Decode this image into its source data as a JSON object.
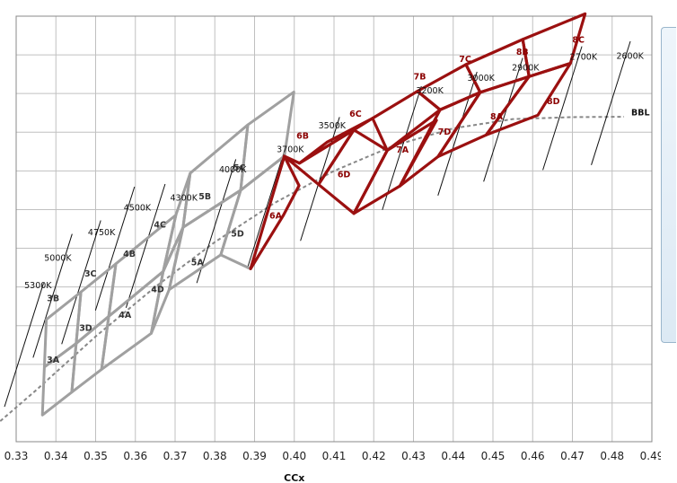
{
  "chart_data": {
    "type": "line",
    "title": "",
    "xlabel": "CCx",
    "ylabel": "",
    "xlim": [
      0.33,
      0.49
    ],
    "ylim": [
      0.33,
      0.44
    ],
    "x_ticks": [
      "0.33",
      "0.34",
      "0.35",
      "0.36",
      "0.37",
      "0.38",
      "0.39",
      "0.40",
      "0.41",
      "0.42",
      "0.43",
      "0.44",
      "0.45",
      "0.46",
      "0.47",
      "0.48",
      "0.49"
    ],
    "grid": true,
    "colors": {
      "gray": "#a0a0a0",
      "red": "#9b1010",
      "grid": "#c0c0c0",
      "bbl": "#888888"
    },
    "cct_labels": [
      {
        "text": "5300K",
        "x": 0.3375,
        "y": 0.3704,
        "lx": 0.3355,
        "ly": 0.3697
      },
      {
        "text": "5000K",
        "x": 0.3447,
        "y": 0.3831,
        "lx": 0.3405,
        "ly": 0.3768
      },
      {
        "text": "4750K",
        "x": 0.3519,
        "y": 0.3866,
        "lx": 0.3515,
        "ly": 0.3834
      },
      {
        "text": "4500K",
        "x": 0.3604,
        "y": 0.3953,
        "lx": 0.3605,
        "ly": 0.3898
      },
      {
        "text": "4300K",
        "x": 0.3681,
        "y": 0.396,
        "lx": 0.3722,
        "ly": 0.3923
      },
      {
        "text": "4000K",
        "x": 0.3859,
        "y": 0.4024,
        "lx": 0.3845,
        "ly": 0.3996
      },
      {
        "text": "3700K",
        "x": 0.3986,
        "y": 0.4061,
        "lx": 0.399,
        "ly": 0.4048
      },
      {
        "text": "3500K",
        "x": 0.412,
        "y": 0.4133,
        "lx": 0.4095,
        "ly": 0.411
      },
      {
        "text": "3200K",
        "x": 0.4326,
        "y": 0.4213,
        "lx": 0.4341,
        "ly": 0.42
      },
      {
        "text": "3000K",
        "x": 0.4466,
        "y": 0.425,
        "lx": 0.447,
        "ly": 0.4233
      },
      {
        "text": "2900K",
        "x": 0.4581,
        "y": 0.4286,
        "lx": 0.4582,
        "ly": 0.426
      },
      {
        "text": "2700K",
        "x": 0.473,
        "y": 0.4316,
        "lx": 0.4728,
        "ly": 0.4287
      },
      {
        "text": "2600K",
        "x": 0.4852,
        "y": 0.4329,
        "lx": 0.4845,
        "ly": 0.429
      }
    ],
    "bbl": {
      "label": "BBL",
      "label_x": 0.4848,
      "label_y": 0.4144,
      "x": [
        0.32,
        0.335,
        0.35,
        0.365,
        0.38,
        0.395,
        0.41,
        0.425,
        0.44,
        0.455,
        0.47,
        0.483
      ],
      "y": [
        0.33,
        0.3433,
        0.3572,
        0.37,
        0.3816,
        0.3917,
        0.4,
        0.4065,
        0.411,
        0.4134,
        0.4139,
        0.414
      ]
    },
    "series": [
      {
        "group": "gray",
        "bins": [
          {
            "name": "3A",
            "label_x": 0.3393,
            "label_y": 0.3504,
            "points": [
              [
                0.3371,
                0.3493
              ],
              [
                0.3451,
                0.3554
              ],
              [
                0.344,
                0.3428
              ],
              [
                0.3366,
                0.3369
              ]
            ]
          },
          {
            "name": "3B",
            "label_x": 0.3393,
            "label_y": 0.3663,
            "points": [
              [
                0.3376,
                0.3616
              ],
              [
                0.3463,
                0.3687
              ],
              [
                0.3451,
                0.3554
              ],
              [
                0.3371,
                0.3493
              ]
            ]
          },
          {
            "name": "3C",
            "label_x": 0.3487,
            "label_y": 0.3727,
            "points": [
              [
                0.3463,
                0.3687
              ],
              [
                0.3551,
                0.376
              ],
              [
                0.3533,
                0.3624
              ],
              [
                0.3451,
                0.3554
              ]
            ]
          },
          {
            "name": "3D",
            "label_x": 0.3475,
            "label_y": 0.3587,
            "points": [
              [
                0.3451,
                0.3554
              ],
              [
                0.3533,
                0.3624
              ],
              [
                0.3515,
                0.3487
              ],
              [
                0.344,
                0.3428
              ]
            ]
          },
          {
            "name": "4A",
            "label_x": 0.3574,
            "label_y": 0.362,
            "points": [
              [
                0.3533,
                0.3624
              ],
              [
                0.367,
                0.374
              ],
              [
                0.364,
                0.358
              ],
              [
                0.3515,
                0.3487
              ]
            ]
          },
          {
            "name": "4B",
            "label_x": 0.3585,
            "label_y": 0.3778,
            "points": [
              [
                0.3551,
                0.376
              ],
              [
                0.3702,
                0.3886
              ],
              [
                0.367,
                0.374
              ],
              [
                0.3533,
                0.3624
              ]
            ]
          },
          {
            "name": "4C",
            "label_x": 0.3662,
            "label_y": 0.3854,
            "points": [
              [
                0.3702,
                0.3886
              ],
              [
                0.3738,
                0.3994
              ],
              [
                0.372,
                0.3854
              ],
              [
                0.367,
                0.374
              ]
            ]
          },
          {
            "name": "4D",
            "label_x": 0.3656,
            "label_y": 0.3686,
            "points": [
              [
                0.367,
                0.374
              ],
              [
                0.372,
                0.3854
              ],
              [
                0.3685,
                0.3693
              ],
              [
                0.364,
                0.358
              ]
            ]
          },
          {
            "name": "5A",
            "label_x": 0.3756,
            "label_y": 0.3756,
            "points": [
              [
                0.372,
                0.3854
              ],
              [
                0.3865,
                0.395
              ],
              [
                0.3815,
                0.3783
              ],
              [
                0.3685,
                0.3693
              ]
            ]
          },
          {
            "name": "5B",
            "label_x": 0.3775,
            "label_y": 0.3927,
            "points": [
              [
                0.3738,
                0.3994
              ],
              [
                0.3883,
                0.4119
              ],
              [
                0.3865,
                0.395
              ],
              [
                0.372,
                0.3854
              ]
            ]
          },
          {
            "name": "5C",
            "label_x": 0.3862,
            "label_y": 0.4001,
            "points": [
              [
                0.3883,
                0.4119
              ],
              [
                0.3999,
                0.4204
              ],
              [
                0.3975,
                0.4038
              ],
              [
                0.3865,
                0.395
              ]
            ]
          },
          {
            "name": "5D",
            "label_x": 0.3857,
            "label_y": 0.383,
            "points": [
              [
                0.3865,
                0.395
              ],
              [
                0.3975,
                0.4038
              ],
              [
                0.389,
                0.3747
              ],
              [
                0.3815,
                0.3783
              ]
            ]
          }
        ]
      },
      {
        "group": "red",
        "bins": [
          {
            "name": "6A",
            "label_x": 0.3953,
            "label_y": 0.3877,
            "points": [
              [
                0.389,
                0.3747
              ],
              [
                0.3973,
                0.3886
              ],
              [
                0.4012,
                0.3962
              ],
              [
                0.3975,
                0.4038
              ]
            ]
          },
          {
            "name": "6B",
            "label_x": 0.4021,
            "label_y": 0.4083,
            "points": [
              [
                0.3975,
                0.4038
              ],
              [
                0.4013,
                0.402
              ],
              [
                0.415,
                0.4106
              ],
              [
                0.4061,
                0.3965
              ]
            ]
          },
          {
            "name": "6C",
            "label_x": 0.4154,
            "label_y": 0.414,
            "points": [
              [
                0.4013,
                0.402
              ],
              [
                0.4082,
                0.4074
              ],
              [
                0.4197,
                0.4136
              ],
              [
                0.415,
                0.4106
              ]
            ]
          },
          {
            "name": "6D",
            "label_x": 0.4125,
            "label_y": 0.3983,
            "points": [
              [
                0.4061,
                0.3965
              ],
              [
                0.415,
                0.4106
              ],
              [
                0.4234,
                0.4053
              ],
              [
                0.415,
                0.389
              ]
            ]
          },
          {
            "name": "7A",
            "label_x": 0.4272,
            "label_y": 0.4047,
            "points": [
              [
                0.4234,
                0.4053
              ],
              [
                0.4358,
                0.4131
              ],
              [
                0.4266,
                0.3961
              ],
              [
                0.415,
                0.389
              ]
            ]
          },
          {
            "name": "7B",
            "label_x": 0.4316,
            "label_y": 0.4236,
            "points": [
              [
                0.4197,
                0.4136
              ],
              [
                0.431,
                0.4206
              ],
              [
                0.4367,
                0.4158
              ],
              [
                0.4234,
                0.4053
              ]
            ]
          },
          {
            "name": "7C",
            "label_x": 0.443,
            "label_y": 0.4282,
            "points": [
              [
                0.431,
                0.4206
              ],
              [
                0.4432,
                0.4275
              ],
              [
                0.4468,
                0.4203
              ],
              [
                0.4367,
                0.4158
              ]
            ]
          },
          {
            "name": "7D",
            "label_x": 0.4378,
            "label_y": 0.4094,
            "points": [
              [
                0.4367,
                0.4158
              ],
              [
                0.4468,
                0.4203
              ],
              [
                0.4362,
                0.4037
              ],
              [
                0.4266,
                0.3961
              ]
            ]
          },
          {
            "name": "8A",
            "label_x": 0.4509,
            "label_y": 0.4133,
            "points": [
              [
                0.4468,
                0.4203
              ],
              [
                0.4591,
                0.4244
              ],
              [
                0.4483,
                0.4093
              ],
              [
                0.4362,
                0.4037
              ]
            ]
          },
          {
            "name": "8B",
            "label_x": 0.4574,
            "label_y": 0.43,
            "points": [
              [
                0.4432,
                0.4275
              ],
              [
                0.4575,
                0.434
              ],
              [
                0.4591,
                0.4244
              ],
              [
                0.4468,
                0.4203
              ]
            ]
          },
          {
            "name": "8C",
            "label_x": 0.4715,
            "label_y": 0.4332,
            "points": [
              [
                0.4575,
                0.434
              ],
              [
                0.4732,
                0.4406
              ],
              [
                0.4695,
                0.4278
              ],
              [
                0.4591,
                0.4244
              ]
            ]
          },
          {
            "name": "8D",
            "label_x": 0.4652,
            "label_y": 0.4172,
            "points": [
              [
                0.4591,
                0.4244
              ],
              [
                0.4695,
                0.4278
              ],
              [
                0.4613,
                0.4144
              ],
              [
                0.4483,
                0.4093
              ]
            ]
          }
        ]
      }
    ]
  }
}
